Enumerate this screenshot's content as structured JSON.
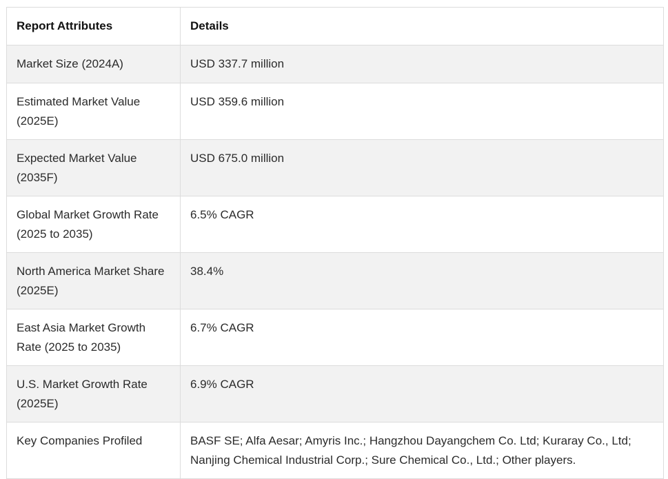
{
  "table": {
    "headers": [
      "Report Attributes",
      "Details"
    ],
    "rows": [
      {
        "attribute": "Market Size (2024A)",
        "details": "USD 337.7 million"
      },
      {
        "attribute": "Estimated Market Value (2025E)",
        "details": "USD 359.6 million"
      },
      {
        "attribute": "Expected Market Value (2035F)",
        "details": "USD 675.0 million"
      },
      {
        "attribute": "Global Market Growth Rate (2025 to 2035)",
        "details": "6.5% CAGR"
      },
      {
        "attribute": "North America Market Share (2025E)",
        "details": "38.4%"
      },
      {
        "attribute": "East Asia Market Growth Rate (2025 to 2035)",
        "details": "6.7% CAGR"
      },
      {
        "attribute": "U.S. Market Growth Rate (2025E)",
        "details": "6.9% CAGR"
      },
      {
        "attribute": "Key Companies Profiled",
        "details": "BASF SE; Alfa Aesar; Amyris Inc.; Hangzhou Dayangchem Co. Ltd; Kuraray Co., Ltd; Nanjing Chemical Industrial Corp.; Sure Chemical Co., Ltd.; Other players."
      }
    ]
  },
  "colors": {
    "stripe": "#f2f2f2",
    "border": "#dcdcdc",
    "text": "#2b2b2b"
  }
}
